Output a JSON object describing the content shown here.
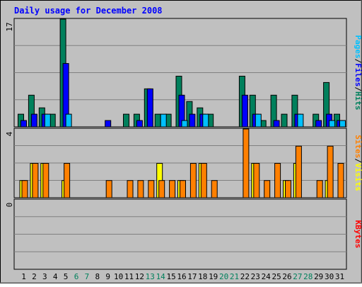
{
  "chart_data": {
    "type": "bar",
    "title": "Daily usage for December 2008",
    "days": [
      "1",
      "2",
      "3",
      "4",
      "5",
      "6",
      "7",
      "8",
      "9",
      "10",
      "11",
      "12",
      "13",
      "14",
      "15",
      "16",
      "17",
      "18",
      "19",
      "20",
      "21",
      "22",
      "23",
      "24",
      "25",
      "26",
      "27",
      "28",
      "29",
      "30",
      "31"
    ],
    "weekend_days": [
      "6",
      "7",
      "13",
      "14",
      "20",
      "21",
      "27",
      "28"
    ],
    "panels": [
      {
        "id": "requests",
        "max_label": "17",
        "ymax": 17,
        "side_label": [
          "Pages",
          "/",
          "Files",
          "/",
          "Hits"
        ],
        "series": [
          {
            "name": "Hits",
            "values": [
              2,
              5,
              3,
              2,
              17,
              0,
              0,
              0,
              0,
              0,
              2,
              2,
              6,
              2,
              2,
              8,
              4,
              3,
              2,
              0,
              0,
              8,
              5,
              1,
              5,
              2,
              5,
              0,
              2,
              7,
              2
            ]
          },
          {
            "name": "Files",
            "values": [
              1,
              2,
              2,
              0,
              10,
              0,
              0,
              0,
              1,
              0,
              0,
              1,
              6,
              0,
              0,
              5,
              2,
              2,
              0,
              0,
              0,
              5,
              2,
              0,
              1,
              0,
              2,
              0,
              1,
              2,
              1
            ]
          },
          {
            "name": "Pages",
            "values": [
              0,
              0,
              2,
              0,
              2,
              0,
              0,
              0,
              0,
              0,
              0,
              0,
              0,
              2,
              0,
              1,
              0,
              2,
              0,
              0,
              0,
              0,
              2,
              0,
              0,
              0,
              2,
              0,
              0,
              1,
              1
            ]
          }
        ]
      },
      {
        "id": "visits",
        "max_label": "4",
        "ymax": 4,
        "side_label": [
          "Sites",
          "/",
          "Visits"
        ],
        "series": [
          {
            "name": "Visits",
            "values": [
              1,
              2,
              2,
              0,
              1,
              0,
              0,
              0,
              0,
              0,
              0,
              0,
              0,
              2,
              0,
              1,
              0,
              2,
              0,
              0,
              0,
              0,
              2,
              0,
              0,
              1,
              2,
              0,
              0,
              1,
              0
            ]
          },
          {
            "name": "Sites",
            "values": [
              1,
              2,
              2,
              0,
              2,
              0,
              0,
              0,
              1,
              0,
              1,
              1,
              1,
              1,
              1,
              1,
              2,
              2,
              1,
              0,
              0,
              4,
              2,
              1,
              2,
              1,
              3,
              0,
              1,
              3,
              2
            ]
          }
        ]
      },
      {
        "id": "kbytes",
        "max_label": "0",
        "ymax": 1,
        "side_label": [
          "KBytes"
        ],
        "series": [
          {
            "name": "KBytes",
            "values": [
              0,
              0,
              0,
              0,
              0,
              0,
              0,
              0,
              0,
              0,
              0,
              0,
              0,
              0,
              0,
              0,
              0,
              0,
              0,
              0,
              0,
              0,
              0,
              0,
              0,
              0,
              0,
              0,
              0,
              0,
              0
            ]
          }
        ]
      }
    ],
    "colors": {
      "hits": "#00805c",
      "files": "#0000ff",
      "pages": "#00c0ff",
      "visits": "#ffff00",
      "sites": "#ff8000",
      "kbytes": "#ff0000",
      "title": "#0000ff",
      "plot_bg": "#c0c0c0",
      "weekday_text": "#000000",
      "weekend_text": "#00805c",
      "separator": "#808080"
    }
  }
}
